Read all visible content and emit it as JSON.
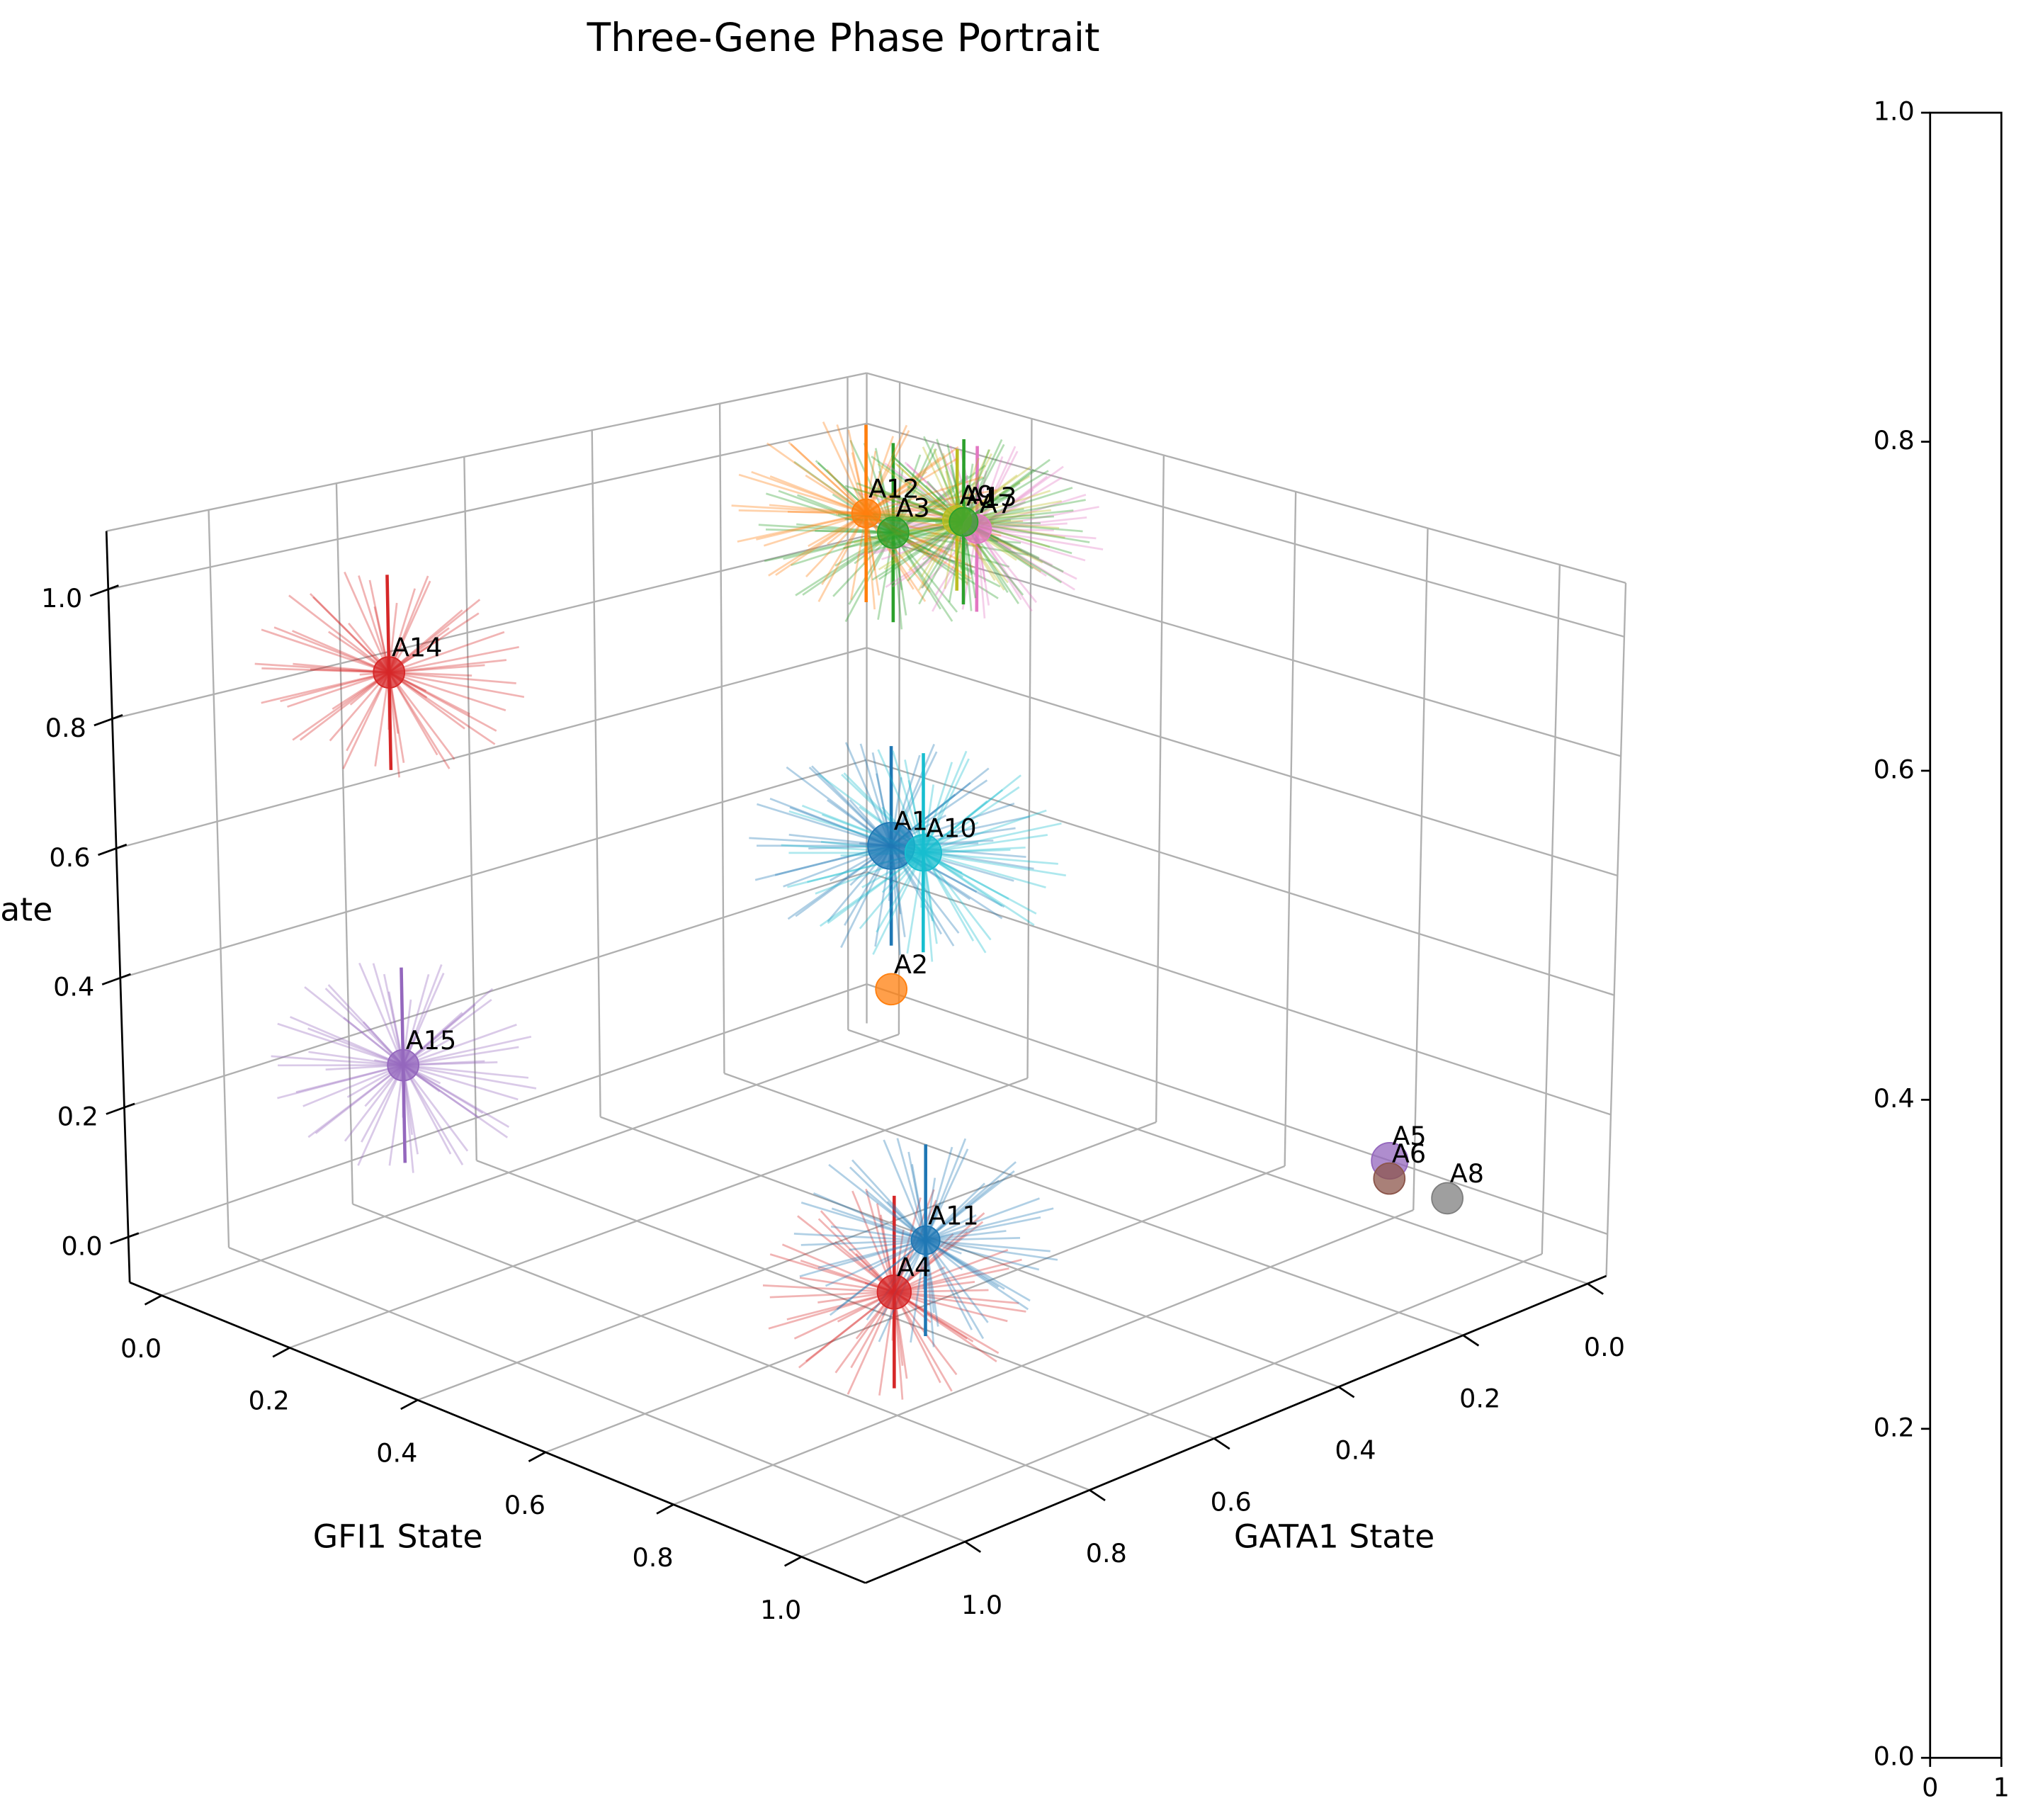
{
  "chart_data": {
    "type": "scatter3d",
    "title": "Three-Gene Phase Portrait",
    "xlabel": "GATA1 State",
    "ylabel": "GFI1 State",
    "zlabel": "ate",
    "labels": [
      "A1",
      "A2",
      "A3",
      "A4",
      "A5",
      "A6",
      "A7",
      "A8",
      "A9",
      "A10",
      "A11",
      "A12",
      "A13",
      "A14",
      "A15"
    ],
    "x": [
      0.5,
      0.5,
      0.285,
      0.64,
      0.01,
      0.01,
      0.2,
      0.01,
      0.19,
      0.475,
      0.6,
      0.25,
      0.19,
      1.0,
      1.0
    ],
    "y": [
      0.5,
      0.5,
      0.295,
      0.64,
      0.8,
      0.8,
      0.34,
      0.89,
      0.3,
      0.525,
      0.65,
      0.22,
      0.31,
      0.22,
      0.23
    ],
    "z": [
      0.61,
      0.38,
      1.0,
      0.0,
      0.03,
      0.0,
      1.0,
      0.0,
      1.0,
      0.6,
      0.07,
      1.0,
      1.0,
      0.92,
      0.32
    ],
    "sizes": [
      18,
      12,
      12,
      13,
      14,
      12,
      11,
      12,
      11,
      14,
      11,
      11,
      11,
      12,
      12
    ],
    "spreads": [
      0.16,
      null,
      0.15,
      0.15,
      null,
      null,
      0.14,
      null,
      0.12,
      0.16,
      0.15,
      0.15,
      0.14,
      0.15,
      0.15
    ],
    "colors": [
      "#1f77b4",
      "#ff7f0e",
      "#2ca02c",
      "#d62728",
      "#9467bd",
      "#8c564b",
      "#e377c2",
      "#7f7f7f",
      "#bcbd22",
      "#17becf",
      "#1f77b4",
      "#ff7f0e",
      "#2ca02c",
      "#d62728",
      "#9467bd"
    ],
    "xlim": [
      -0.03,
      1.16
    ],
    "ylim": [
      -0.05,
      1.1
    ],
    "zlim": [
      -0.07,
      1.09
    ],
    "xticks": [
      {
        "value": 0,
        "label": "0.0"
      },
      0.2,
      0.4,
      0.6,
      0.8,
      {
        "value": 1,
        "label": "1.0"
      }
    ],
    "yticks": [
      {
        "value": 0,
        "label": "0.0"
      },
      0.2,
      0.4,
      0.6,
      0.8,
      {
        "value": 1,
        "label": "1.0"
      }
    ],
    "zticks": [
      {
        "value": 0,
        "label": "0.0"
      },
      0.2,
      0.4,
      0.6,
      0.8,
      {
        "value": 1,
        "label": "1.0"
      }
    ],
    "grid": true,
    "colorbar": {
      "ylim": [
        0,
        1
      ],
      "yticks": [
        {
          "value": 0,
          "label": "0.0"
        },
        0.2,
        0.4,
        0.6,
        0.8,
        {
          "value": 1,
          "label": "1.0"
        }
      ],
      "xlim": [
        0,
        1
      ],
      "xticks": [
        0,
        1
      ]
    }
  }
}
